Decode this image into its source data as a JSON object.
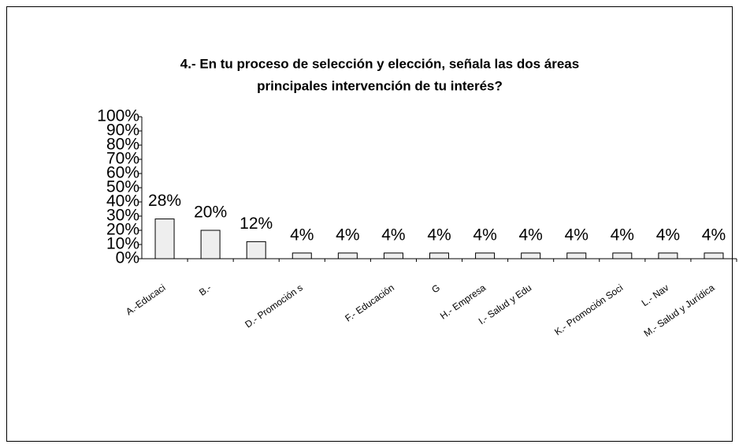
{
  "chart_data": {
    "type": "bar",
    "title": "4.- En tu proceso de selección y elección, señala las dos áreas principales intervención de tu interés?",
    "title_lines": [
      "4.- En tu proceso de selección y elección, señala las dos áreas",
      "principales intervención de tu interés?"
    ],
    "categories": [
      "A.-Educaci",
      "B.-",
      null,
      "D.- Promoción s",
      null,
      "F.- Educación",
      "G",
      "H.- Empresa",
      "I.- Salud y Edu",
      null,
      "K.- Promoción Soci",
      "L.- Nav",
      "M.- Salud y Jurídica"
    ],
    "values": [
      28,
      20,
      12,
      4,
      4,
      4,
      4,
      4,
      4,
      4,
      4,
      4,
      4
    ],
    "value_labels": [
      "28%",
      "20%",
      "12%",
      "4%",
      "4%",
      "4%",
      "4%",
      "4%",
      "4%",
      "4%",
      "4%",
      "4%",
      "4%"
    ],
    "color": "#eeeeee",
    "ylim": [
      0,
      100
    ],
    "yticks": [
      {
        "value": 0,
        "label": "0%"
      },
      {
        "value": 10,
        "label": "10%"
      },
      {
        "value": 20,
        "label": "20%"
      },
      {
        "value": 30,
        "label": "30%"
      },
      {
        "value": 40,
        "label": "40%"
      },
      {
        "value": 50,
        "label": "50%"
      },
      {
        "value": 60,
        "label": "60%"
      },
      {
        "value": 70,
        "label": "70%"
      },
      {
        "value": 80,
        "label": "80%"
      },
      {
        "value": 90,
        "label": "90%"
      },
      {
        "value": 100,
        "label": "100%"
      }
    ]
  }
}
